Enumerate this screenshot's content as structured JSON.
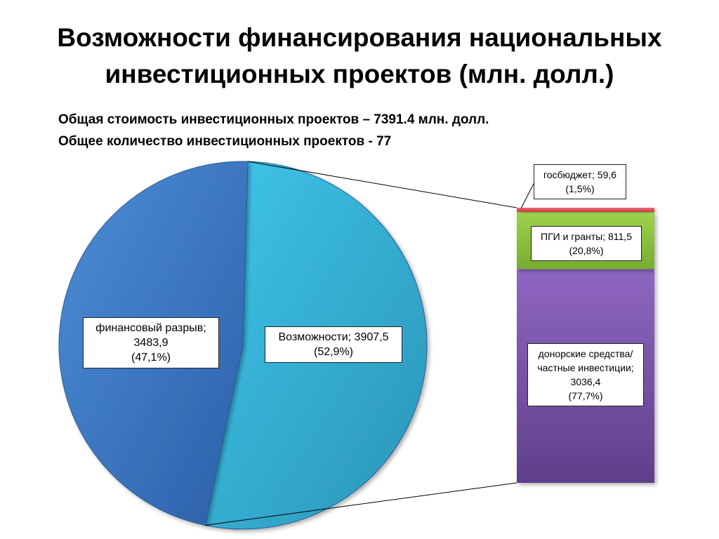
{
  "header": {
    "title_line1": "Возможности финансирования национальных",
    "title_line2": "инвестиционных проектов (млн. долл.)",
    "subtitle_line1": "Общая стоимость инвестиционных проектов – 7391.4 млн. долл.",
    "subtitle_line2": "Общее количество инвестиционных проектов - 77"
  },
  "chart_data": {
    "type": "pie",
    "title": "Возможности финансирования национальных инвестиционных проектов (млн. долл.)",
    "units": "млн. долл.",
    "total": 7391.4,
    "pie": {
      "slices": [
        {
          "label": "финансовый разрыв",
          "value": 3483.9,
          "percent": 47.1,
          "color": "#3a76c8"
        },
        {
          "label": "Возможности",
          "value": 3907.5,
          "percent": 52.9,
          "color": "#33b3d8"
        }
      ]
    },
    "breakdown_of": "Возможности",
    "breakdown_bar": {
      "segments": [
        {
          "label": "донорские средства/ частные инвестиции",
          "value": 3036.4,
          "percent": 77.7,
          "color": "#7a56ab"
        },
        {
          "label": "ПГИ и гранты",
          "value": 811.5,
          "percent": 20.8,
          "color": "#8cc43e"
        },
        {
          "label": "госбюджет",
          "value": 59.6,
          "percent": 1.5,
          "color": "#e0505a"
        }
      ]
    }
  },
  "labels": {
    "gap": {
      "line1": "финансовый разрыв;",
      "line2": "3483,9",
      "line3": "(47,1%)"
    },
    "opportunities": {
      "line1": "Возможности; 3907,5",
      "line2": "(52,9%)"
    },
    "budget": {
      "line1": "госбюджет; 59,6",
      "line2": "(1,5%)"
    },
    "grants": {
      "line1": "ПГИ и гранты; 811,5",
      "line2": "(20,8%)"
    },
    "donors": {
      "line1": "донорские средства/",
      "line2": "частные инвестиции;",
      "line3": "3036,4",
      "line4": "(77,7%)"
    }
  }
}
